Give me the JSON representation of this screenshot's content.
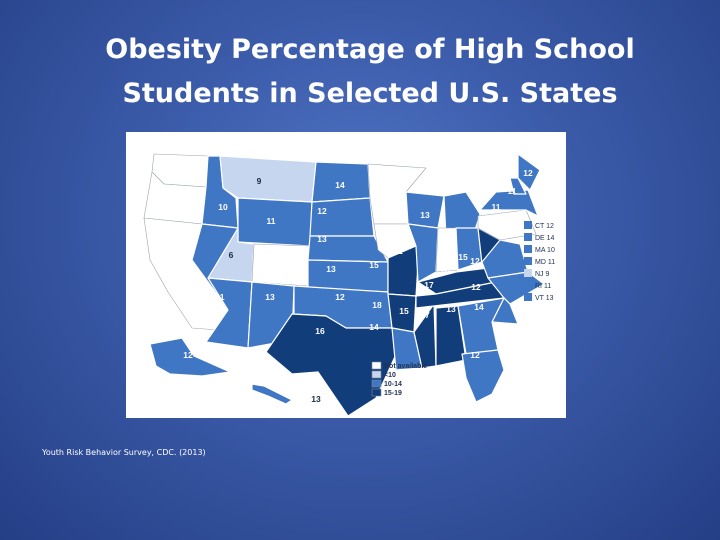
{
  "title": {
    "line1": "Obesity Percentage of High School",
    "line2": "Students in Selected U.S. States"
  },
  "source": "Youth Risk Behavior Survey, CDC. (2013)",
  "colors": {
    "not_available": "#ffffff",
    "lt10": "#c6d6ef",
    "10_14": "#3f77c4",
    "15_19": "#113e7a",
    "border": "#ffffff",
    "ocean": "#ffffff"
  },
  "legend": [
    {
      "label": "Not available",
      "color_key": "not_available"
    },
    {
      "label": "<10",
      "color_key": "lt10"
    },
    {
      "label": "10-14",
      "color_key": "10_14"
    },
    {
      "label": "15-19",
      "color_key": "15_19"
    }
  ],
  "small_states": [
    {
      "label": "CT 12",
      "color_key": "10_14"
    },
    {
      "label": "DE 14",
      "color_key": "10_14"
    },
    {
      "label": "MA 10",
      "color_key": "10_14"
    },
    {
      "label": "MD 11",
      "color_key": "10_14"
    },
    {
      "label": "NJ 9",
      "color_key": "lt10"
    },
    {
      "label": "RI 11",
      "color_key": "10_14"
    },
    {
      "label": "VT 13",
      "color_key": "10_14"
    }
  ],
  "states": [
    {
      "state": "WA",
      "value": null,
      "color_key": "not_available"
    },
    {
      "state": "OR",
      "value": null,
      "color_key": "not_available"
    },
    {
      "state": "CA",
      "value": null,
      "color_key": "not_available"
    },
    {
      "state": "ID",
      "value": "10",
      "color_key": "10_14"
    },
    {
      "state": "NV",
      "value": "11",
      "color_key": "10_14"
    },
    {
      "state": "MT",
      "value": "9",
      "color_key": "lt10"
    },
    {
      "state": "WY",
      "value": "11",
      "color_key": "10_14"
    },
    {
      "state": "UT",
      "value": "6",
      "color_key": "lt10"
    },
    {
      "state": "CO",
      "value": null,
      "color_key": "not_available"
    },
    {
      "state": "AZ",
      "value": "11",
      "color_key": "10_14"
    },
    {
      "state": "NM",
      "value": "13",
      "color_key": "10_14"
    },
    {
      "state": "ND",
      "value": "14",
      "color_key": "10_14"
    },
    {
      "state": "SD",
      "value": "12",
      "color_key": "10_14"
    },
    {
      "state": "NE",
      "value": "13",
      "color_key": "10_14"
    },
    {
      "state": "KS",
      "value": "13",
      "color_key": "10_14"
    },
    {
      "state": "OK",
      "value": "12",
      "color_key": "10_14"
    },
    {
      "state": "TX",
      "value": "16",
      "color_key": "15_19"
    },
    {
      "state": "MN",
      "value": null,
      "color_key": "not_available"
    },
    {
      "state": "IA",
      "value": null,
      "color_key": "not_available"
    },
    {
      "state": "MO",
      "value": "15",
      "color_key": "15_19"
    },
    {
      "state": "AR",
      "value": "18",
      "color_key": "15_19"
    },
    {
      "state": "LA",
      "value": "14",
      "color_key": "10_14"
    },
    {
      "state": "WI",
      "value": "12",
      "color_key": "10_14"
    },
    {
      "state": "IL",
      "value": "12",
      "color_key": "10_14"
    },
    {
      "state": "MS",
      "value": "15",
      "color_key": "15_19"
    },
    {
      "state": "MI",
      "value": "13",
      "color_key": "10_14"
    },
    {
      "state": "IN",
      "value": null,
      "color_key": "not_available"
    },
    {
      "state": "KY",
      "value": "18",
      "color_key": "15_19"
    },
    {
      "state": "TN",
      "value": "17",
      "color_key": "15_19"
    },
    {
      "state": "AL",
      "value": "17",
      "color_key": "15_19"
    },
    {
      "state": "OH",
      "value": "13",
      "color_key": "10_14"
    },
    {
      "state": "WV",
      "value": "15",
      "color_key": "15_19"
    },
    {
      "state": "VA",
      "value": "12",
      "color_key": "10_14"
    },
    {
      "state": "NC",
      "value": "12",
      "color_key": "10_14"
    },
    {
      "state": "SC",
      "value": "14",
      "color_key": "10_14"
    },
    {
      "state": "GA",
      "value": "13",
      "color_key": "10_14"
    },
    {
      "state": "FL",
      "value": "12",
      "color_key": "10_14"
    },
    {
      "state": "PA",
      "value": null,
      "color_key": "not_available"
    },
    {
      "state": "NY",
      "value": "11",
      "color_key": "10_14"
    },
    {
      "state": "ME",
      "value": "12",
      "color_key": "10_14"
    },
    {
      "state": "NH",
      "value": "11",
      "color_key": "10_14"
    },
    {
      "state": "AK",
      "value": "12",
      "color_key": "10_14"
    },
    {
      "state": "HI",
      "value": "13",
      "color_key": "10_14"
    }
  ]
}
